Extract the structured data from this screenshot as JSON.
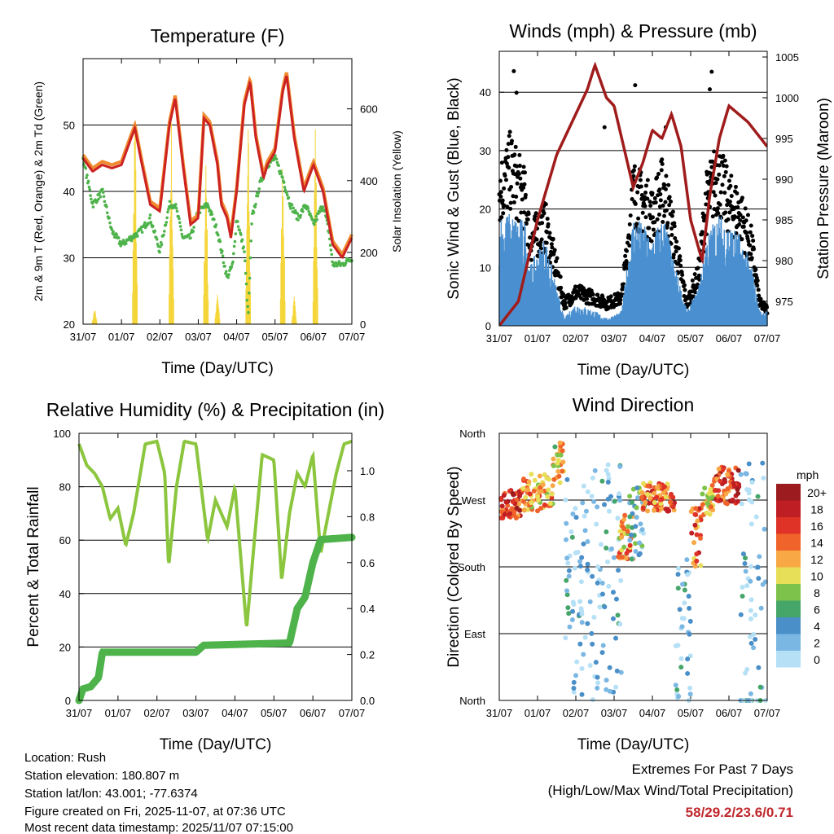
{
  "chart_data": [
    {
      "type": "line",
      "title": "Temperature (F)",
      "xlabel": "Time (Day/UTC)",
      "ylabel": "2m & 9m T (Red, Orange) & 2m Td (Green)",
      "ylabel_right": "Solar Insolation (Yellow)",
      "xticks": [
        "31/07",
        "01/07",
        "02/07",
        "03/07",
        "04/07",
        "05/07",
        "06/07",
        "07/07"
      ],
      "yticks": [
        20,
        30,
        40,
        50
      ],
      "yticks_right": [
        0,
        200,
        400,
        600
      ],
      "ylim": [
        20,
        60
      ],
      "ylim_right": [
        0,
        740
      ],
      "series": [
        {
          "name": "2m T",
          "color": "#cc2222",
          "x": [
            0,
            0.25,
            0.5,
            0.75,
            1,
            1.25,
            1.35,
            1.5,
            1.75,
            2,
            2.25,
            2.4,
            2.6,
            2.8,
            3,
            3.15,
            3.3,
            3.5,
            3.6,
            3.75,
            3.85,
            4,
            4.2,
            4.35,
            4.5,
            4.7,
            4.8,
            5,
            5.2,
            5.3,
            5.5,
            5.75,
            6,
            6.25,
            6.5,
            6.75,
            7
          ],
          "y": [
            45,
            43,
            44,
            43.5,
            44,
            48,
            49.5,
            45,
            38,
            37,
            50,
            54,
            44,
            35,
            36,
            51,
            50,
            44,
            38,
            36,
            33,
            40,
            53,
            56.5,
            48,
            42,
            44,
            46,
            55,
            57.5,
            48,
            40,
            44,
            40,
            32,
            30,
            33
          ]
        },
        {
          "name": "9m T",
          "color": "#f08a30",
          "offset": 0.5
        },
        {
          "name": "2m Td",
          "color": "#4db34a",
          "x": [
            0,
            0.25,
            0.5,
            0.75,
            1,
            1.25,
            1.5,
            1.75,
            2,
            2.25,
            2.4,
            2.6,
            2.8,
            3,
            3.25,
            3.5,
            3.75,
            3.9,
            4,
            4.2,
            4.3,
            4.4,
            4.6,
            4.8,
            5,
            5.2,
            5.4,
            5.6,
            5.8,
            6,
            6.25,
            6.4,
            6.5,
            6.75,
            7
          ],
          "y": [
            45,
            38,
            40,
            34,
            32,
            33,
            34,
            36,
            31,
            38,
            38,
            33,
            33,
            37,
            38,
            34,
            27,
            29,
            36,
            31,
            21,
            36,
            41,
            44,
            45,
            42,
            38,
            36,
            38,
            35,
            38,
            34,
            29,
            29,
            30
          ]
        },
        {
          "name": "Solar",
          "color": "#f5d63a",
          "peaks": [
            [
              0.3,
              50
            ],
            [
              1.35,
              700
            ],
            [
              2.3,
              600
            ],
            [
              3.2,
              550
            ],
            [
              3.5,
              110
            ],
            [
              4.3,
              620
            ],
            [
              5.2,
              560
            ],
            [
              5.5,
              80
            ],
            [
              6.05,
              620
            ]
          ]
        }
      ]
    },
    {
      "type": "line",
      "title": "Winds (mph) & Pressure (mb)",
      "xlabel": "Time (Day/UTC)",
      "ylabel": "Sonic Wind & Gust (Blue, Black)",
      "ylabel_right": "Station Pressure (Maroon)",
      "xticks": [
        "31/07",
        "01/07",
        "02/07",
        "03/07",
        "04/07",
        "05/07",
        "06/07",
        "07/07"
      ],
      "yticks": [
        0,
        10,
        20,
        30,
        40
      ],
      "yticks_right": [
        975,
        980,
        985,
        990,
        995,
        1000,
        1005
      ],
      "ylim": [
        0,
        47
      ],
      "ylim_right": [
        972,
        1005.7
      ],
      "series": [
        {
          "name": "Sonic Wind",
          "color": "#4a90d0",
          "x": [
            0,
            0.3,
            0.7,
            0.8,
            1.2,
            1.5,
            1.7,
            2,
            2.5,
            2.8,
            3.2,
            3.5,
            4,
            4.3,
            4.5,
            4.9,
            5.2,
            5.4,
            5.7,
            6,
            6.3,
            6.6,
            6.8,
            7
          ],
          "y": [
            15,
            15,
            14,
            8,
            12,
            5,
            1,
            3,
            2,
            1,
            2,
            15,
            12,
            15,
            10,
            2,
            5,
            12,
            15,
            14,
            12,
            8,
            2,
            2
          ]
        },
        {
          "name": "Gust",
          "color": "#000000",
          "x": [
            0,
            0.3,
            0.7,
            0.8,
            1.2,
            1.5,
            1.7,
            2,
            2.5,
            2.8,
            3.2,
            3.5,
            4,
            4.3,
            4.5,
            4.9,
            5.2,
            5.4,
            5.7,
            6,
            6.3,
            6.6,
            6.8,
            7
          ],
          "y": [
            24,
            28,
            22,
            15,
            18,
            10,
            4,
            6,
            5,
            4,
            5,
            24,
            20,
            25,
            18,
            4,
            9,
            22,
            27,
            22,
            20,
            14,
            4,
            3
          ],
          "outliers": [
            [
              0.38,
              43.6
            ],
            [
              0.45,
              39.9
            ],
            [
              2.75,
              34
            ],
            [
              3.55,
              41.2
            ],
            [
              4.35,
              34
            ],
            [
              5.55,
              43.5
            ],
            [
              5.5,
              40.5
            ]
          ]
        },
        {
          "name": "Pressure",
          "color": "#a01c1c",
          "x": [
            0,
            0.5,
            1,
            1.5,
            2,
            2.3,
            2.5,
            2.8,
            3,
            3.3,
            3.5,
            3.75,
            4,
            4.25,
            4.5,
            4.75,
            5,
            5.3,
            5.5,
            5.75,
            6,
            6.5,
            7
          ],
          "y": [
            972,
            975,
            985,
            993,
            998,
            1001,
            1004,
            1000,
            999,
            993,
            989,
            992,
            996,
            995,
            998,
            994,
            985,
            980,
            988,
            995,
            999,
            997,
            994
          ]
        }
      ]
    },
    {
      "type": "line",
      "title": "Relative Humidity (%) & Precipitation (in)",
      "xlabel": "Time (Day/UTC)",
      "ylabel": "Percent & Total Rainfall",
      "xticks": [
        "31/07",
        "01/07",
        "02/07",
        "03/07",
        "04/07",
        "05/07",
        "06/07",
        "07/07"
      ],
      "yticks": [
        0,
        20,
        40,
        60,
        80,
        100
      ],
      "yticks_right": [
        "0.0",
        "0.2",
        "0.4",
        "0.6",
        "0.8",
        "1.0"
      ],
      "ylim": [
        0,
        100
      ],
      "ylim_right": [
        0,
        1.163
      ],
      "series": [
        {
          "name": "RH",
          "color": "#8cc63f",
          "x": [
            0,
            0.2,
            0.4,
            0.6,
            0.8,
            1,
            1.2,
            1.4,
            1.7,
            2,
            2.2,
            2.3,
            2.5,
            2.7,
            3,
            3.3,
            3.5,
            3.8,
            4,
            4.3,
            4.5,
            4.7,
            5,
            5.2,
            5.4,
            5.6,
            5.8,
            6,
            6.2,
            6.4,
            6.6,
            6.8,
            7
          ],
          "y": [
            96,
            88,
            85,
            80,
            68,
            72,
            58,
            70,
            96,
            97,
            85,
            50,
            80,
            97,
            96,
            60,
            75,
            65,
            80,
            27,
            60,
            92,
            90,
            45,
            70,
            85,
            80,
            92,
            55,
            70,
            85,
            96,
            97
          ]
        },
        {
          "name": "Total Rainfall",
          "color": "#4db34a",
          "x": [
            0,
            0.1,
            0.3,
            0.5,
            0.6,
            3,
            3.2,
            5.4,
            5.6,
            5.8,
            6,
            6.2,
            7
          ],
          "y": [
            0,
            0.05,
            0.06,
            0.1,
            0.21,
            0.21,
            0.24,
            0.25,
            0.4,
            0.45,
            0.6,
            0.7,
            0.71
          ]
        }
      ]
    },
    {
      "type": "scatter",
      "title": "Wind Direction",
      "xlabel": "Time (Day/UTC)",
      "ylabel": "Direction (Colored By Speed)",
      "xticks": [
        "31/07",
        "01/07",
        "02/07",
        "03/07",
        "04/07",
        "05/07",
        "06/07",
        "07/07"
      ],
      "yticks": [
        "North",
        "East",
        "South",
        "West",
        "North"
      ],
      "ylim": [
        0,
        360
      ],
      "legend": {
        "title": "mph",
        "labels": [
          "20+",
          "18",
          "16",
          "14",
          "12",
          "10",
          "8",
          "6",
          "4",
          "2",
          "0"
        ],
        "colors": [
          "#9b1b1e",
          "#bf1e24",
          "#de3326",
          "#f0632b",
          "#f8a845",
          "#e8df58",
          "#7dc24a",
          "#46a66a",
          "#4a8fc8",
          "#7ab7e3",
          "#b5e0f6"
        ],
        "placement": "right"
      },
      "clusters": [
        [
          0,
          0.6,
          265,
          20,
          16
        ],
        [
          0.6,
          1.4,
          280,
          25,
          12
        ],
        [
          1.4,
          1.7,
          320,
          30,
          10
        ],
        [
          1.7,
          2.5,
          150,
          150,
          2
        ],
        [
          2.5,
          3.2,
          170,
          160,
          2
        ],
        [
          3.1,
          3.5,
          220,
          30,
          12
        ],
        [
          3.4,
          3.8,
          240,
          50,
          4
        ],
        [
          3.7,
          4.6,
          275,
          20,
          14
        ],
        [
          4.6,
          5,
          90,
          100,
          2
        ],
        [
          5,
          5.3,
          220,
          40,
          14
        ],
        [
          5.3,
          5.6,
          270,
          20,
          10
        ],
        [
          5.6,
          6.3,
          290,
          25,
          16
        ],
        [
          6.3,
          7,
          120,
          200,
          2
        ]
      ]
    }
  ],
  "info": {
    "location": "Location: Rush",
    "elevation": "Station elevation: 180.807 m",
    "latlon": "Station lat/lon: 43.001; -77.6374",
    "created": "Figure created on Fri, 2025-11-07, at 07:36 UTC",
    "recent": "Most recent data timestamp: 2025/11/07 07:15:00"
  },
  "extremes": {
    "title": "Extremes For Past 7 Days",
    "subtitle": "(High/Low/Max Wind/Total Precipitation)",
    "values": "58/29.2/23.6/0.71",
    "color": "#c0282d"
  }
}
